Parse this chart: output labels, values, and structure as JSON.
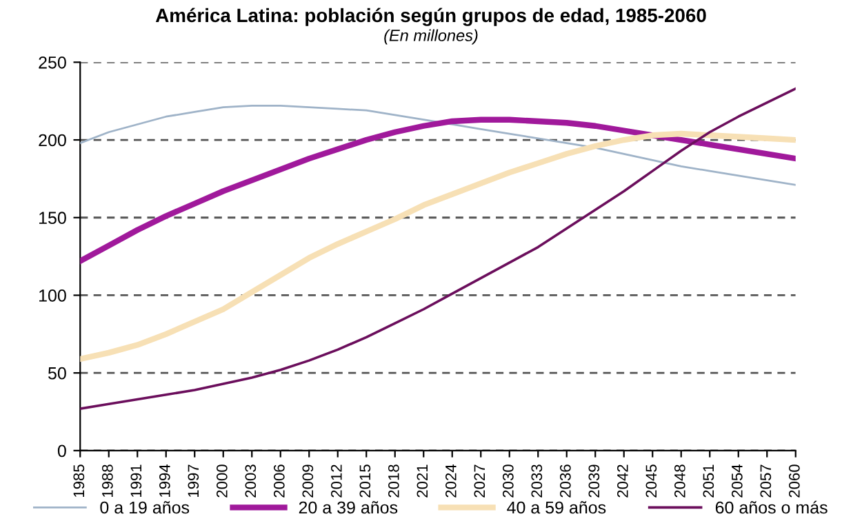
{
  "chart_data": {
    "type": "line",
    "title": "América Latina: población según grupos de edad, 1985-2060",
    "subtitle": "(En millones)",
    "x": [
      1985,
      1988,
      1991,
      1994,
      1997,
      2000,
      2003,
      2006,
      2009,
      2012,
      2015,
      2018,
      2021,
      2024,
      2027,
      2030,
      2033,
      2036,
      2039,
      2042,
      2045,
      2048,
      2051,
      2054,
      2057,
      2060
    ],
    "series": [
      {
        "name": "0 a 19 años",
        "color": "#9fb3c8",
        "values": [
          198,
          205,
          210,
          215,
          218,
          221,
          222,
          222,
          221,
          220,
          219,
          216,
          213,
          210,
          207,
          204,
          201,
          198,
          195,
          191,
          187,
          183,
          180,
          177,
          174,
          171
        ]
      },
      {
        "name": "20 a 39 años",
        "color": "#a0199b",
        "values": [
          122,
          132,
          142,
          151,
          159,
          167,
          174,
          181,
          188,
          194,
          200,
          205,
          209,
          212,
          213,
          213,
          212,
          211,
          209,
          206,
          203,
          200,
          197,
          194,
          191,
          188
        ]
      },
      {
        "name": "40 a 59 años",
        "color": "#f7e0b5",
        "values": [
          59,
          63,
          68,
          75,
          83,
          91,
          102,
          113,
          124,
          133,
          141,
          149,
          158,
          165,
          172,
          179,
          185,
          191,
          196,
          200,
          203,
          204,
          203,
          202,
          201,
          200
        ]
      },
      {
        "name": "60 años o más",
        "color": "#6b0e5c",
        "values": [
          27,
          30,
          33,
          36,
          39,
          43,
          47,
          52,
          58,
          65,
          73,
          82,
          91,
          101,
          111,
          121,
          131,
          143,
          155,
          167,
          180,
          193,
          205,
          215,
          224,
          233
        ]
      }
    ],
    "xlim": [
      1985,
      2060
    ],
    "xticks": [
      1985,
      1988,
      1991,
      1994,
      1997,
      2000,
      2003,
      2006,
      2009,
      2012,
      2015,
      2018,
      2021,
      2024,
      2027,
      2030,
      2033,
      2036,
      2039,
      2042,
      2045,
      2048,
      2051,
      2054,
      2057,
      2060
    ],
    "ylim": [
      0,
      250
    ],
    "yticks": [
      0,
      50,
      100,
      150,
      200,
      250
    ],
    "grid": "y",
    "legend": "bottom",
    "line_style": "solid",
    "marker": "none"
  }
}
